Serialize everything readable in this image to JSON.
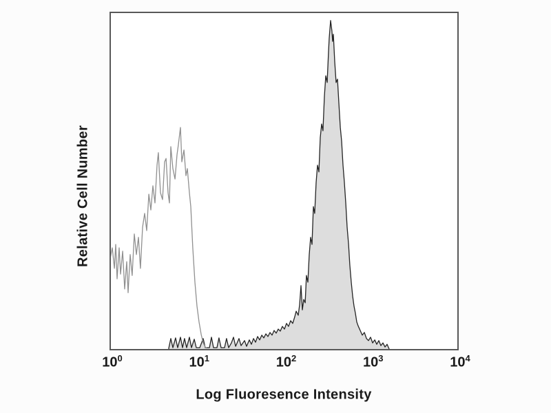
{
  "figure": {
    "description": "Flow cytometry single-parameter histogram with an unstained (open gray) population and a stained (filled gray) population"
  },
  "chart_data": {
    "type": "area",
    "title": "",
    "xlabel": "Log Fluoresence Intensity",
    "ylabel": "Relative Cell Number",
    "x_scale": "log10",
    "xlog_range": [
      0,
      4
    ],
    "x_tick_base": "10",
    "x_tick_exponents": [
      0,
      1,
      2,
      3,
      4
    ],
    "x_tick_labels_display": [
      "10^0",
      "10^1",
      "10^2",
      "10^3",
      "10^4"
    ],
    "y_axis_ticks": "none",
    "grid": false,
    "legend": null,
    "colors": {
      "background": "#fcfcfc",
      "plot_background": "#ffffff",
      "border": "#585858",
      "open_curve": "#8f8f8f",
      "filled_fill": "#dddddd",
      "filled_stroke": "#232323",
      "text": "#1a1a1a"
    },
    "series": [
      {
        "name": "unstained control (open)",
        "style": "open",
        "color": "#8f8f8f",
        "peak_log_x": 0.81,
        "peak_height_percent": 65.9,
        "points": [
          [
            0.0,
            27.1
          ],
          [
            0.024,
            30.2
          ],
          [
            0.048,
            24.1
          ],
          [
            0.063,
            31.2
          ],
          [
            0.079,
            21.0
          ],
          [
            0.103,
            30.2
          ],
          [
            0.119,
            22.4
          ],
          [
            0.143,
            29.2
          ],
          [
            0.166,
            18.0
          ],
          [
            0.19,
            26.1
          ],
          [
            0.206,
            16.9
          ],
          [
            0.23,
            28.2
          ],
          [
            0.253,
            22.0
          ],
          [
            0.277,
            34.3
          ],
          [
            0.301,
            28.2
          ],
          [
            0.325,
            33.3
          ],
          [
            0.348,
            24.1
          ],
          [
            0.372,
            36.3
          ],
          [
            0.396,
            40.4
          ],
          [
            0.42,
            35.3
          ],
          [
            0.444,
            46.1
          ],
          [
            0.467,
            41.4
          ],
          [
            0.491,
            48.6
          ],
          [
            0.515,
            43.5
          ],
          [
            0.539,
            54.7
          ],
          [
            0.554,
            58.4
          ],
          [
            0.578,
            46.5
          ],
          [
            0.602,
            44.5
          ],
          [
            0.626,
            55.7
          ],
          [
            0.642,
            56.7
          ],
          [
            0.665,
            46.5
          ],
          [
            0.681,
            43.5
          ],
          [
            0.697,
            60.2
          ],
          [
            0.721,
            53.7
          ],
          [
            0.745,
            50.6
          ],
          [
            0.768,
            57.8
          ],
          [
            0.784,
            60.8
          ],
          [
            0.808,
            65.9
          ],
          [
            0.824,
            55.7
          ],
          [
            0.848,
            59.2
          ],
          [
            0.871,
            51.6
          ],
          [
            0.887,
            53.7
          ],
          [
            0.911,
            46.5
          ],
          [
            0.927,
            42.4
          ],
          [
            0.95,
            30.2
          ],
          [
            0.974,
            20.0
          ],
          [
            0.998,
            12.9
          ],
          [
            1.022,
            8.2
          ],
          [
            1.046,
            4.5
          ],
          [
            1.069,
            2.0
          ],
          [
            1.093,
            0.8
          ],
          [
            1.109,
            0.4
          ]
        ]
      },
      {
        "name": "stained (filled)",
        "style": "filled",
        "color": "#232323",
        "fill": "#dddddd",
        "peak_log_x": 2.54,
        "peak_height_percent": 97.6,
        "points": [
          [
            0.673,
            0.4
          ],
          [
            0.697,
            3.3
          ],
          [
            0.721,
            0.6
          ],
          [
            0.752,
            3.5
          ],
          [
            0.776,
            0.6
          ],
          [
            0.808,
            3.7
          ],
          [
            0.832,
            0.6
          ],
          [
            0.855,
            3.3
          ],
          [
            0.879,
            0.6
          ],
          [
            0.911,
            3.7
          ],
          [
            0.935,
            0.6
          ],
          [
            0.966,
            3.1
          ],
          [
            0.99,
            0.6
          ],
          [
            1.03,
            0.6
          ],
          [
            1.069,
            3.3
          ],
          [
            1.093,
            0.6
          ],
          [
            1.141,
            0.6
          ],
          [
            1.164,
            3.7
          ],
          [
            1.188,
            0.6
          ],
          [
            1.228,
            0.6
          ],
          [
            1.251,
            3.5
          ],
          [
            1.275,
            0.6
          ],
          [
            1.315,
            0.6
          ],
          [
            1.338,
            3.3
          ],
          [
            1.362,
            0.6
          ],
          [
            1.394,
            2.0
          ],
          [
            1.418,
            3.7
          ],
          [
            1.442,
            1.0
          ],
          [
            1.481,
            3.3
          ],
          [
            1.505,
            1.2
          ],
          [
            1.545,
            2.7
          ],
          [
            1.568,
            1.0
          ],
          [
            1.6,
            2.9
          ],
          [
            1.624,
            1.6
          ],
          [
            1.648,
            3.3
          ],
          [
            1.671,
            2.2
          ],
          [
            1.695,
            3.9
          ],
          [
            1.719,
            2.9
          ],
          [
            1.743,
            4.3
          ],
          [
            1.766,
            3.5
          ],
          [
            1.79,
            4.7
          ],
          [
            1.814,
            3.9
          ],
          [
            1.838,
            5.1
          ],
          [
            1.861,
            4.3
          ],
          [
            1.885,
            5.7
          ],
          [
            1.909,
            4.9
          ],
          [
            1.933,
            6.1
          ],
          [
            1.956,
            5.5
          ],
          [
            1.98,
            6.9
          ],
          [
            2.004,
            6.1
          ],
          [
            2.028,
            7.8
          ],
          [
            2.051,
            6.9
          ],
          [
            2.075,
            8.6
          ],
          [
            2.099,
            7.8
          ],
          [
            2.123,
            9.8
          ],
          [
            2.139,
            11.4
          ],
          [
            2.162,
            10.2
          ],
          [
            2.178,
            13.3
          ],
          [
            2.194,
            19.0
          ],
          [
            2.21,
            11.8
          ],
          [
            2.226,
            14.9
          ],
          [
            2.242,
            13.9
          ],
          [
            2.257,
            22.0
          ],
          [
            2.273,
            20.0
          ],
          [
            2.289,
            28.2
          ],
          [
            2.305,
            33.3
          ],
          [
            2.321,
            31.2
          ],
          [
            2.337,
            42.4
          ],
          [
            2.352,
            40.4
          ],
          [
            2.368,
            49.6
          ],
          [
            2.384,
            54.7
          ],
          [
            2.4,
            52.7
          ],
          [
            2.416,
            62.9
          ],
          [
            2.432,
            66.9
          ],
          [
            2.447,
            64.9
          ],
          [
            2.463,
            75.1
          ],
          [
            2.479,
            81.2
          ],
          [
            2.495,
            79.2
          ],
          [
            2.511,
            88.4
          ],
          [
            2.519,
            92.4
          ],
          [
            2.535,
            97.6
          ],
          [
            2.55,
            94.5
          ],
          [
            2.558,
            91.4
          ],
          [
            2.566,
            93.5
          ],
          [
            2.582,
            85.3
          ],
          [
            2.598,
            79.2
          ],
          [
            2.614,
            80.2
          ],
          [
            2.63,
            73.1
          ],
          [
            2.646,
            65.9
          ],
          [
            2.661,
            61.8
          ],
          [
            2.677,
            54.7
          ],
          [
            2.693,
            49.6
          ],
          [
            2.709,
            43.5
          ],
          [
            2.725,
            36.3
          ],
          [
            2.741,
            31.2
          ],
          [
            2.756,
            25.1
          ],
          [
            2.772,
            20.0
          ],
          [
            2.788,
            15.9
          ],
          [
            2.804,
            12.9
          ],
          [
            2.82,
            10.8
          ],
          [
            2.836,
            8.2
          ],
          [
            2.851,
            7.1
          ],
          [
            2.875,
            5.7
          ],
          [
            2.899,
            4.3
          ],
          [
            2.923,
            5.1
          ],
          [
            2.947,
            3.3
          ],
          [
            2.97,
            2.7
          ],
          [
            2.994,
            3.7
          ],
          [
            3.018,
            2.0
          ],
          [
            3.042,
            2.9
          ],
          [
            3.065,
            1.6
          ],
          [
            3.089,
            2.7
          ],
          [
            3.113,
            1.2
          ],
          [
            3.137,
            2.0
          ],
          [
            3.16,
            0.8
          ],
          [
            3.184,
            1.6
          ],
          [
            3.208,
            0.2
          ]
        ]
      }
    ]
  }
}
